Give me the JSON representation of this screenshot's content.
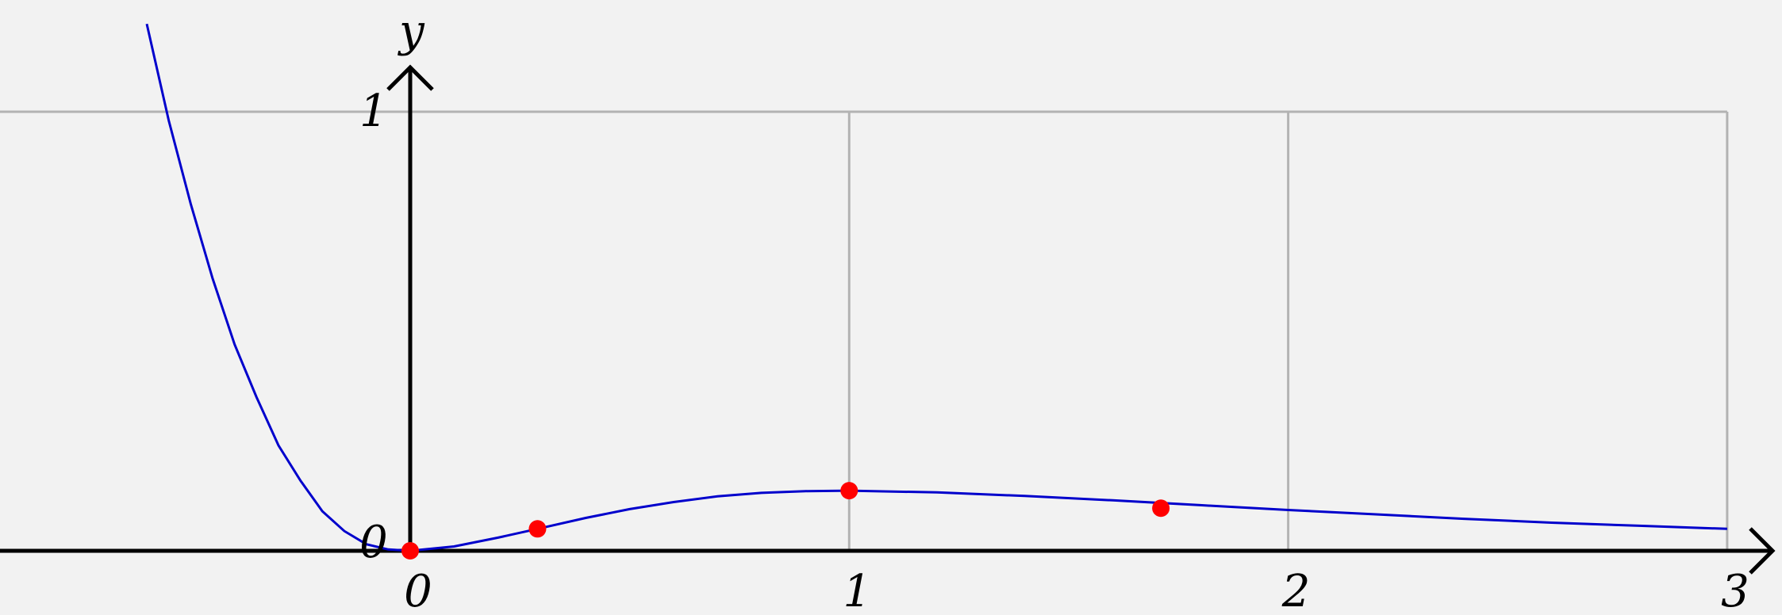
{
  "chart_data": {
    "type": "line",
    "title": "",
    "xlabel": "",
    "ylabel": "y",
    "xlim": [
      -0.94,
      3.1
    ],
    "ylim": [
      -0.03,
      1.2
    ],
    "grid": true,
    "x_ticks": [
      "0",
      "1",
      "2",
      "3"
    ],
    "y_ticks": [
      "0",
      "1"
    ],
    "curve_color": "#0000cc",
    "point_color": "#ff0000",
    "series": [
      {
        "values": [
          {
            "x": -0.6,
            "y": 1.2
          },
          {
            "x": -0.55,
            "y": 0.98
          },
          {
            "x": -0.5,
            "y": 0.79
          },
          {
            "x": -0.45,
            "y": 0.62
          },
          {
            "x": -0.4,
            "y": 0.47
          },
          {
            "x": -0.35,
            "y": 0.35
          },
          {
            "x": -0.3,
            "y": 0.24
          },
          {
            "x": -0.25,
            "y": 0.16
          },
          {
            "x": -0.2,
            "y": 0.09
          },
          {
            "x": -0.15,
            "y": 0.045
          },
          {
            "x": -0.1,
            "y": 0.015
          },
          {
            "x": -0.05,
            "y": 0.003
          },
          {
            "x": 0.0,
            "y": 0.0
          },
          {
            "x": 0.1,
            "y": 0.01
          },
          {
            "x": 0.2,
            "y": 0.03
          },
          {
            "x": 0.29,
            "y": 0.05
          },
          {
            "x": 0.4,
            "y": 0.075
          },
          {
            "x": 0.5,
            "y": 0.095
          },
          {
            "x": 0.6,
            "y": 0.111
          },
          {
            "x": 0.7,
            "y": 0.124
          },
          {
            "x": 0.8,
            "y": 0.132
          },
          {
            "x": 0.9,
            "y": 0.136
          },
          {
            "x": 1.0,
            "y": 0.137
          },
          {
            "x": 1.2,
            "y": 0.133
          },
          {
            "x": 1.4,
            "y": 0.125
          },
          {
            "x": 1.6,
            "y": 0.115
          },
          {
            "x": 1.8,
            "y": 0.104
          },
          {
            "x": 2.0,
            "y": 0.093
          },
          {
            "x": 2.2,
            "y": 0.083
          },
          {
            "x": 2.4,
            "y": 0.073
          },
          {
            "x": 2.6,
            "y": 0.064
          },
          {
            "x": 2.8,
            "y": 0.057
          },
          {
            "x": 3.0,
            "y": 0.05
          }
        ]
      }
    ],
    "points": [
      {
        "x": 0.0,
        "y": 0.0
      },
      {
        "x": 0.29,
        "y": 0.05
      },
      {
        "x": 1.0,
        "y": 0.137
      },
      {
        "x": 1.71,
        "y": 0.097
      }
    ]
  }
}
